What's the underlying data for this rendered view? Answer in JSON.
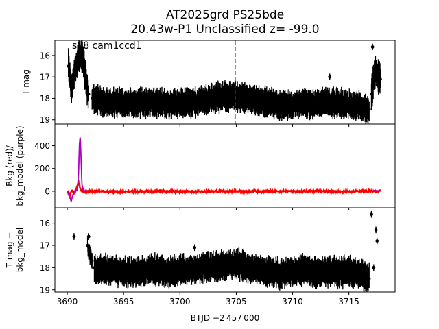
{
  "title_line1": "AT2025grd  PS25bde",
  "title_line2": "20.43w-P1 Unclassified z= -99.0",
  "xlabel": "BTJD −2 457 000",
  "chart_data": [
    {
      "type": "scatter",
      "name": "T mag",
      "ylabel": "T mag",
      "annotation": "s88 cam1ccd1",
      "marker_line_x": 3704.9,
      "marker_line_color": "#e00000",
      "xlim": [
        3688.9,
        3719.1
      ],
      "ylim": [
        19.2,
        15.3
      ],
      "y_inverted": true,
      "xticks": [
        3690,
        3695,
        3700,
        3705,
        3710,
        3715
      ],
      "yticks": [
        16,
        17,
        18,
        19
      ],
      "color": "#000000",
      "segments": [
        {
          "x": [
            3690.1,
            3690.4,
            3690.7,
            3690.9,
            3691.1,
            3691.3,
            3691.5,
            3691.7,
            3691.9
          ],
          "y": [
            16.5,
            17.5,
            16.6,
            16.3,
            15.9,
            16.1,
            16.5,
            17.3,
            17.8
          ],
          "err": 0.5
        },
        {
          "x": [
            3692.2,
            3693,
            3694,
            3695,
            3696,
            3697,
            3698,
            3699,
            3700,
            3701,
            3702,
            3703,
            3704,
            3705,
            3706,
            3707,
            3708,
            3709,
            3710,
            3711,
            3712,
            3713,
            3714,
            3715,
            3716,
            3716.8
          ],
          "y": [
            18.0,
            18.1,
            18.2,
            18.2,
            18.2,
            18.2,
            18.2,
            18.3,
            18.2,
            18.2,
            18.1,
            18.0,
            17.9,
            17.9,
            18.0,
            18.1,
            18.2,
            18.3,
            18.3,
            18.2,
            18.3,
            18.2,
            18.2,
            18.3,
            18.4,
            18.5
          ],
          "err": 0.45
        },
        {
          "x": [
            3717.0,
            3717.2,
            3717.4,
            3717.6,
            3717.8
          ],
          "y": [
            17.8,
            17.0,
            16.7,
            16.9,
            17.1
          ],
          "err": 0.55
        }
      ],
      "outliers": [
        {
          "x": 3717.1,
          "y": 15.6
        },
        {
          "x": 3696.5,
          "y": 17.6
        },
        {
          "x": 3703.2,
          "y": 17.6
        },
        {
          "x": 3713.3,
          "y": 17.0
        }
      ]
    },
    {
      "type": "line",
      "name": "background",
      "ylabel_line1": "Bkg (red)/",
      "ylabel_line2": "bkg_model (purple)",
      "xlim": [
        3688.9,
        3719.1
      ],
      "ylim": [
        -145,
        590
      ],
      "xticks": [
        3690,
        3695,
        3700,
        3705,
        3710,
        3715
      ],
      "yticks": [
        0,
        200,
        400
      ],
      "series": [
        {
          "color": "#ff0000",
          "x": [
            3690,
            3690.2,
            3690.4,
            3690.6,
            3690.8,
            3691.0,
            3691.2,
            3691.4,
            3692,
            3694,
            3696,
            3698,
            3700,
            3702,
            3704,
            3706,
            3708,
            3710,
            3712,
            3714,
            3716,
            3717,
            3717.5,
            3717.8
          ],
          "y": [
            0,
            -40,
            10,
            -20,
            20,
            80,
            10,
            -5,
            0,
            -3,
            -2,
            0,
            -3,
            -2,
            0,
            0,
            -2,
            2,
            0,
            -3,
            0,
            2,
            -5,
            10
          ]
        },
        {
          "color": "#b000c0",
          "x": [
            3690,
            3690.2,
            3690.35,
            3690.5,
            3690.7,
            3690.9,
            3691.0,
            3691.08,
            3691.15,
            3691.22,
            3691.3,
            3691.45,
            3692,
            3695,
            3700,
            3705,
            3710,
            3715,
            3717,
            3717.5,
            3717.8
          ],
          "y": [
            0,
            -50,
            -90,
            -30,
            10,
            5,
            150,
            420,
            480,
            300,
            60,
            5,
            0,
            0,
            0,
            0,
            0,
            0,
            0,
            5,
            0
          ]
        }
      ]
    },
    {
      "type": "scatter",
      "name": "T mag - bkg_model",
      "ylabel_line1": "T mag −",
      "ylabel_line2": "bkg_model",
      "xlim": [
        3688.9,
        3719.1
      ],
      "ylim": [
        19.1,
        15.3
      ],
      "y_inverted": true,
      "xticks": [
        3690,
        3695,
        3700,
        3705,
        3710,
        3715
      ],
      "xtick_labels": [
        "3690",
        "3695",
        "3700",
        "3705",
        "3710",
        "3715"
      ],
      "yticks": [
        16,
        17,
        18,
        19
      ],
      "color": "#000000",
      "segments": [
        {
          "x": [
            3691.8,
            3692.0,
            3692.2
          ],
          "y": [
            17.0,
            17.4,
            17.7
          ],
          "err": 0.25
        },
        {
          "x": [
            3692.4,
            3693,
            3694,
            3695,
            3696,
            3697,
            3698,
            3699,
            3700,
            3701,
            3702,
            3703,
            3704,
            3705,
            3706,
            3707,
            3708,
            3709,
            3710,
            3711,
            3712,
            3713,
            3714,
            3715,
            3716,
            3716.8
          ],
          "y": [
            18.0,
            18.1,
            18.1,
            18.2,
            18.2,
            18.1,
            18.1,
            18.2,
            18.1,
            18.1,
            18.0,
            18.0,
            17.9,
            17.8,
            18.0,
            18.1,
            18.2,
            18.3,
            18.2,
            18.1,
            18.2,
            18.2,
            18.2,
            18.2,
            18.3,
            18.5
          ],
          "err": 0.45
        }
      ],
      "outliers": [
        {
          "x": 3690.6,
          "y": 16.6
        },
        {
          "x": 3691.9,
          "y": 16.6
        },
        {
          "x": 3701.3,
          "y": 17.1
        },
        {
          "x": 3717.0,
          "y": 15.6
        },
        {
          "x": 3717.4,
          "y": 16.3
        },
        {
          "x": 3717.5,
          "y": 16.8
        },
        {
          "x": 3717.2,
          "y": 18.0
        }
      ]
    }
  ]
}
